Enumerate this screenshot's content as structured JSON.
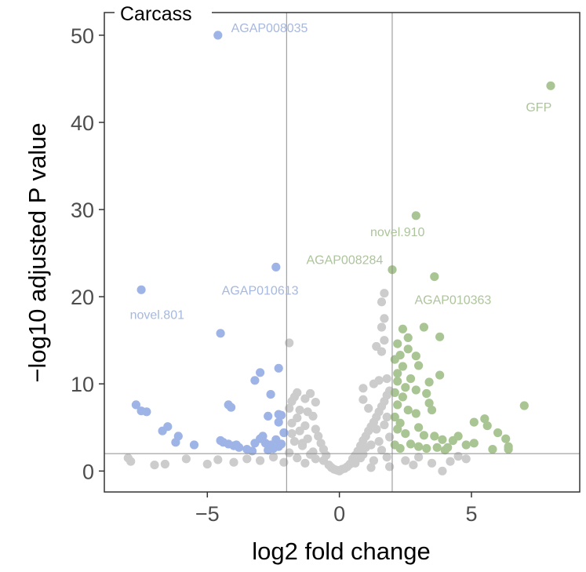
{
  "chart_data": {
    "type": "scatter",
    "title": "Carcass",
    "xlabel": "log2 fold change",
    "ylabel": "−log10 adjusted P value",
    "xlim": [
      -8.9,
      9.1
    ],
    "ylim": [
      -2.4,
      52.6
    ],
    "xticks": [
      -5,
      0,
      5
    ],
    "yticks": [
      0,
      10,
      20,
      30,
      40,
      50
    ],
    "grid": false,
    "legend": "none",
    "thresholds": {
      "log2fc": [
        -2,
        2
      ],
      "neg_log10_padj": 2
    },
    "colors": {
      "down": "#9fb4e6",
      "up": "#a9c593",
      "ns": "#cccccc",
      "down_label": "#a7b8de",
      "up_label": "#adc49c",
      "threshold_line": "#8c8c8c"
    },
    "series": [
      {
        "group": "down",
        "points": [
          [
            -4.6,
            50.0
          ],
          [
            -2.4,
            23.4
          ],
          [
            -7.5,
            20.8
          ],
          [
            -4.5,
            15.8
          ],
          [
            -2.3,
            11.8
          ],
          [
            -3.0,
            11.3
          ],
          [
            -3.2,
            10.4
          ],
          [
            -2.6,
            8.8
          ],
          [
            -4.2,
            7.6
          ],
          [
            -4.1,
            7.3
          ],
          [
            -7.7,
            7.6
          ],
          [
            -7.5,
            6.9
          ],
          [
            -7.3,
            6.8
          ],
          [
            -2.7,
            6.3
          ],
          [
            -2.3,
            6.5
          ],
          [
            -2.2,
            6.4
          ],
          [
            -2.3,
            5.6
          ],
          [
            -6.5,
            5.1
          ],
          [
            -6.7,
            4.6
          ],
          [
            -6.1,
            4.0
          ],
          [
            -6.2,
            3.3
          ],
          [
            -4.5,
            3.5
          ],
          [
            -4.4,
            3.3
          ],
          [
            -4.2,
            3.1
          ],
          [
            -4.0,
            2.9
          ],
          [
            -3.9,
            3.0
          ],
          [
            -3.8,
            2.7
          ],
          [
            -3.5,
            2.5
          ],
          [
            -3.2,
            3.2
          ],
          [
            -3.0,
            3.7
          ],
          [
            -2.9,
            4.0
          ],
          [
            -2.8,
            3.2
          ],
          [
            -2.6,
            3.0
          ],
          [
            -2.5,
            2.6
          ],
          [
            -2.4,
            3.6
          ],
          [
            -2.3,
            2.8
          ],
          [
            -2.2,
            3.1
          ],
          [
            -2.1,
            4.4
          ],
          [
            -5.5,
            3.0
          ],
          [
            -3.3,
            2.3
          ],
          [
            -2.7,
            2.4
          ]
        ]
      },
      {
        "group": "up",
        "points": [
          [
            8.0,
            44.2
          ],
          [
            2.9,
            29.3
          ],
          [
            2.0,
            23.1
          ],
          [
            3.6,
            22.3
          ],
          [
            3.2,
            16.5
          ],
          [
            2.4,
            16.3
          ],
          [
            3.8,
            15.4
          ],
          [
            2.2,
            14.6
          ],
          [
            2.6,
            14.0
          ],
          [
            2.9,
            13.2
          ],
          [
            2.1,
            12.8
          ],
          [
            2.4,
            12.0
          ],
          [
            3.0,
            12.1
          ],
          [
            3.8,
            11.0
          ],
          [
            2.2,
            11.2
          ],
          [
            2.7,
            10.6
          ],
          [
            3.4,
            10.2
          ],
          [
            2.5,
            9.6
          ],
          [
            2.9,
            9.3
          ],
          [
            3.3,
            8.9
          ],
          [
            2.1,
            9.0
          ],
          [
            2.4,
            8.5
          ],
          [
            3.4,
            7.8
          ],
          [
            3.5,
            7.0
          ],
          [
            7.0,
            7.5
          ],
          [
            2.2,
            7.6
          ],
          [
            2.6,
            7.0
          ],
          [
            2.9,
            6.6
          ],
          [
            2.1,
            6.2
          ],
          [
            2.3,
            5.5
          ],
          [
            3.0,
            5.0
          ],
          [
            2.2,
            4.8
          ],
          [
            2.5,
            4.3
          ],
          [
            3.2,
            4.1
          ],
          [
            3.6,
            4.0
          ],
          [
            3.9,
            3.6
          ],
          [
            4.3,
            3.5
          ],
          [
            4.5,
            4.0
          ],
          [
            4.8,
            3.0
          ],
          [
            5.1,
            3.2
          ],
          [
            5.5,
            6.0
          ],
          [
            5.1,
            5.6
          ],
          [
            5.6,
            5.2
          ],
          [
            6.0,
            4.4
          ],
          [
            6.3,
            3.7
          ],
          [
            6.4,
            2.8
          ],
          [
            6.4,
            2.5
          ],
          [
            5.8,
            2.5
          ],
          [
            4.0,
            2.4
          ],
          [
            2.1,
            3.0
          ],
          [
            2.3,
            2.6
          ],
          [
            2.7,
            3.1
          ],
          [
            3.0,
            2.8
          ],
          [
            3.3,
            2.6
          ],
          [
            3.7,
            2.7
          ],
          [
            4.1,
            2.7
          ],
          [
            2.2,
            10.3
          ],
          [
            2.3,
            13.3
          ],
          [
            2.6,
            15.3
          ]
        ]
      },
      {
        "group": "ns",
        "points": [
          [
            -1.9,
            14.7
          ],
          [
            -1.6,
            9.0
          ],
          [
            -1.7,
            8.5
          ],
          [
            -1.1,
            8.9
          ],
          [
            -0.9,
            7.9
          ],
          [
            -1.3,
            8.3
          ],
          [
            -1.8,
            8.0
          ],
          [
            -1.9,
            7.2
          ],
          [
            -1.5,
            7.0
          ],
          [
            -1.2,
            6.8
          ],
          [
            -1.0,
            6.3
          ],
          [
            -1.6,
            6.1
          ],
          [
            -1.8,
            5.5
          ],
          [
            -1.3,
            5.2
          ],
          [
            -0.9,
            4.8
          ],
          [
            -1.5,
            4.6
          ],
          [
            -0.8,
            4.0
          ],
          [
            -1.2,
            3.7
          ],
          [
            -1.7,
            3.4
          ],
          [
            -0.7,
            3.2
          ],
          [
            -1.4,
            2.9
          ],
          [
            -0.6,
            2.5
          ],
          [
            -1.0,
            2.2
          ],
          [
            -1.9,
            2.1
          ],
          [
            -0.5,
            1.8
          ],
          [
            -1.6,
            1.5
          ],
          [
            -0.9,
            1.4
          ],
          [
            -2.5,
            1.6
          ],
          [
            -3.0,
            1.2
          ],
          [
            -3.5,
            1.4
          ],
          [
            -4.0,
            1.0
          ],
          [
            -4.6,
            1.3
          ],
          [
            -5.0,
            0.8
          ],
          [
            -5.8,
            1.4
          ],
          [
            -6.6,
            0.8
          ],
          [
            -7.0,
            0.7
          ],
          [
            -8.0,
            1.5
          ],
          [
            -7.9,
            1.1
          ],
          [
            -2.1,
            1.0
          ],
          [
            -1.3,
            0.9
          ],
          [
            -0.4,
            0.7
          ],
          [
            -0.3,
            0.4
          ],
          [
            -0.2,
            0.2
          ],
          [
            -0.1,
            0.1
          ],
          [
            0.0,
            0.0
          ],
          [
            0.1,
            0.2
          ],
          [
            0.2,
            0.3
          ],
          [
            0.3,
            0.5
          ],
          [
            0.4,
            0.8
          ],
          [
            0.5,
            1.4
          ],
          [
            0.6,
            1.8
          ],
          [
            0.7,
            2.3
          ],
          [
            0.8,
            2.9
          ],
          [
            0.9,
            3.5
          ],
          [
            1.0,
            4.0
          ],
          [
            1.1,
            4.6
          ],
          [
            1.2,
            5.1
          ],
          [
            1.3,
            5.6
          ],
          [
            1.4,
            6.2
          ],
          [
            1.5,
            6.8
          ],
          [
            1.6,
            7.4
          ],
          [
            1.7,
            8.0
          ],
          [
            1.8,
            8.7
          ],
          [
            1.9,
            9.2
          ],
          [
            1.7,
            20.4
          ],
          [
            1.6,
            19.4
          ],
          [
            1.7,
            17.5
          ],
          [
            1.6,
            16.5
          ],
          [
            1.7,
            15.0
          ],
          [
            1.4,
            14.3
          ],
          [
            1.6,
            13.7
          ],
          [
            0.9,
            9.5
          ],
          [
            1.3,
            10.0
          ],
          [
            1.5,
            10.4
          ],
          [
            1.8,
            10.6
          ],
          [
            0.9,
            8.2
          ],
          [
            1.1,
            7.2
          ],
          [
            1.8,
            6.2
          ],
          [
            1.4,
            4.8
          ],
          [
            1.9,
            3.9
          ],
          [
            1.2,
            3.0
          ],
          [
            1.6,
            2.4
          ],
          [
            0.9,
            1.9
          ],
          [
            1.8,
            1.6
          ],
          [
            1.3,
            1.2
          ],
          [
            0.6,
            0.9
          ],
          [
            1.9,
            0.5
          ],
          [
            1.2,
            0.4
          ],
          [
            2.5,
            1.2
          ],
          [
            3.0,
            1.6
          ],
          [
            3.5,
            0.9
          ],
          [
            3.9,
            0.0
          ],
          [
            4.5,
            1.7
          ],
          [
            4.8,
            1.4
          ],
          [
            4.2,
            1.1
          ],
          [
            2.8,
            0.7
          ],
          [
            -1.8,
            4.3
          ],
          [
            -1.4,
            3.2
          ],
          [
            -0.6,
            1.2
          ],
          [
            -1.1,
            1.9
          ],
          [
            1.0,
            2.7
          ],
          [
            1.5,
            3.4
          ],
          [
            0.8,
            1.5
          ],
          [
            1.7,
            5.3
          ]
        ]
      }
    ],
    "annotations": [
      {
        "label": "AGAP008035",
        "group": "down",
        "x": -4.6,
        "y": 50.0,
        "tx": -4.1,
        "ty": 50.9,
        "anchor": "start"
      },
      {
        "label": "GFP",
        "group": "up",
        "x": 8.0,
        "y": 44.2,
        "tx": 7.55,
        "ty": 41.8,
        "anchor": "middle"
      },
      {
        "label": "novel.910",
        "group": "up",
        "x": 2.9,
        "y": 29.3,
        "tx": 2.2,
        "ty": 27.5,
        "anchor": "middle"
      },
      {
        "label": "AGAP008284",
        "group": "up",
        "x": 2.0,
        "y": 23.1,
        "tx": 0.2,
        "ty": 24.3,
        "anchor": "middle"
      },
      {
        "label": "AGAP010613",
        "group": "down",
        "x": -2.4,
        "y": 23.4,
        "tx": -3.0,
        "ty": 20.8,
        "anchor": "middle"
      },
      {
        "label": "AGAP010363",
        "group": "up",
        "x": 3.6,
        "y": 22.3,
        "tx": 4.3,
        "ty": 19.7,
        "anchor": "middle"
      },
      {
        "label": "novel.801",
        "group": "down",
        "x": -7.5,
        "y": 20.8,
        "tx": -6.9,
        "ty": 18.0,
        "anchor": "middle"
      }
    ]
  }
}
